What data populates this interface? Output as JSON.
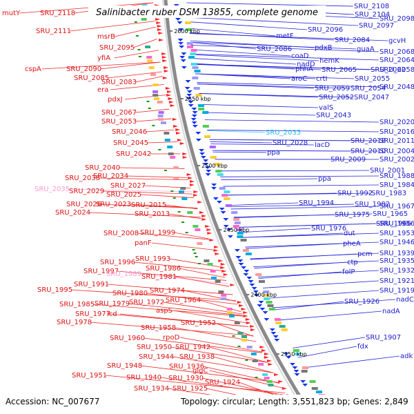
{
  "title": "Salinibacter ruber DSM 13855, complete genome",
  "footer": {
    "accession": "Accession: NC_007677",
    "summary": "Topology: circular; Length: 3,551,823 bp; Genes: 2,849"
  },
  "colors": {
    "left_labels": "#dd1111",
    "left_faded": "#ff9ad0",
    "right_labels": "#1a1acc",
    "right_cyan": "#22bbee",
    "backbone": "#888888",
    "forward_arrow": "#ff2222",
    "reverse_arrow": "#1133ee"
  },
  "kbp_marks": [
    "2600 kbp",
    "2550 kbp",
    "2500 kbp",
    "2450 kbp",
    "2400 kbp",
    "2350 kbp"
  ],
  "left_labels": [
    {
      "text": "mutY",
      "style": "normal"
    },
    {
      "text": "SRU_2118",
      "style": "normal"
    },
    {
      "text": "SRU_2111",
      "style": "normal"
    },
    {
      "text": "msrB",
      "style": "normal"
    },
    {
      "text": "SRU_2095",
      "style": "normal"
    },
    {
      "text": "yfiA",
      "style": "normal"
    },
    {
      "text": "cspA",
      "style": "normal"
    },
    {
      "text": "SRU_2090",
      "style": "normal"
    },
    {
      "text": "SRU_2085",
      "style": "normal"
    },
    {
      "text": "SRU_2083",
      "style": "normal"
    },
    {
      "text": "era",
      "style": "normal"
    },
    {
      "text": "pdxJ",
      "style": "normal"
    },
    {
      "text": "SRU_2067",
      "style": "normal"
    },
    {
      "text": "SRU_2053",
      "style": "normal"
    },
    {
      "text": "SRU_2046",
      "style": "normal"
    },
    {
      "text": "SRU_2045",
      "style": "normal"
    },
    {
      "text": "SRU_2042",
      "style": "normal"
    },
    {
      "text": "SRU_2040",
      "style": "normal"
    },
    {
      "text": "SRU_2038",
      "style": "normal"
    },
    {
      "text": "SRU_2034",
      "style": "normal"
    },
    {
      "text": "SRU_2035",
      "style": "faded"
    },
    {
      "text": "SRU_2029",
      "style": "normal"
    },
    {
      "text": "SRU_2027",
      "style": "normal"
    },
    {
      "text": "SRU_2025",
      "style": "normal"
    },
    {
      "text": "SRU_2026",
      "style": "normal"
    },
    {
      "text": "SRU_2023",
      "style": "normal"
    },
    {
      "text": "SRU_2024",
      "style": "normal"
    },
    {
      "text": "SRU_2015",
      "style": "normal"
    },
    {
      "text": "SRU_2013",
      "style": "normal"
    },
    {
      "text": "SRU_2008",
      "style": "normal"
    },
    {
      "text": "SRU_1999",
      "style": "normal"
    },
    {
      "text": "panF",
      "style": "normal"
    },
    {
      "text": "SRU_1993",
      "style": "normal"
    },
    {
      "text": "SRU_1996",
      "style": "normal"
    },
    {
      "text": "SRU_1986",
      "style": "normal"
    },
    {
      "text": "SRU_1997",
      "style": "normal"
    },
    {
      "text": "SRU_1989",
      "style": "faded"
    },
    {
      "text": "SRU_1981",
      "style": "normal"
    },
    {
      "text": "SRU_1991",
      "style": "normal"
    },
    {
      "text": "SRU_1995",
      "style": "normal"
    },
    {
      "text": "SRU_1980",
      "style": "normal"
    },
    {
      "text": "SRU_1974",
      "style": "normal"
    },
    {
      "text": "SRU_1964",
      "style": "normal"
    },
    {
      "text": "SRU_1985",
      "style": "normal"
    },
    {
      "text": "SRU_1979",
      "style": "normal"
    },
    {
      "text": "SRU_1972",
      "style": "normal"
    },
    {
      "text": "SRU_1977",
      "style": "normal"
    },
    {
      "text": "icd",
      "style": "normal"
    },
    {
      "text": "aspS",
      "style": "normal"
    },
    {
      "text": "SRU_1978",
      "style": "normal"
    },
    {
      "text": "SRU_1952",
      "style": "normal"
    },
    {
      "text": "SRU_1958",
      "style": "normal"
    },
    {
      "text": "SRU_1960",
      "style": "normal"
    },
    {
      "text": "rpoD",
      "style": "normal"
    },
    {
      "text": "SRU_1950",
      "style": "normal"
    },
    {
      "text": "SRU_1942",
      "style": "normal"
    },
    {
      "text": "SRU_1944",
      "style": "normal"
    },
    {
      "text": "SRU_1938",
      "style": "normal"
    },
    {
      "text": "SRU_1948",
      "style": "normal"
    },
    {
      "text": "SRU_1936",
      "style": "normal"
    },
    {
      "text": "SRU_1951",
      "style": "normal"
    },
    {
      "text": "SRU_1940",
      "style": "normal"
    },
    {
      "text": "SRU_1930",
      "style": "normal"
    },
    {
      "text": "glgC",
      "style": "normal"
    },
    {
      "text": "SRU_1934",
      "style": "normal"
    },
    {
      "text": "SRU_1925",
      "style": "normal"
    },
    {
      "text": "SRU_1924",
      "style": "normal"
    },
    {
      "text": "SRU_1927",
      "style": "normal"
    }
  ],
  "right_labels": [
    {
      "text": "SRU_2108",
      "style": "normal"
    },
    {
      "text": "SRU_2104",
      "style": "normal"
    },
    {
      "text": "SRU_2098",
      "style": "normal"
    },
    {
      "text": "SRU_2097",
      "style": "normal"
    },
    {
      "text": "SRU_2096",
      "style": "normal"
    },
    {
      "text": "metF",
      "style": "normal"
    },
    {
      "text": "SRU_2084",
      "style": "normal"
    },
    {
      "text": "gcvH",
      "style": "normal"
    },
    {
      "text": "pdxB",
      "style": "normal"
    },
    {
      "text": "guaA",
      "style": "normal"
    },
    {
      "text": "SRU_2068",
      "style": "normal"
    },
    {
      "text": "SRU_2086",
      "style": "normal"
    },
    {
      "text": "coaD",
      "style": "normal"
    },
    {
      "text": "nadD",
      "style": "normal"
    },
    {
      "text": "hemK",
      "style": "normal"
    },
    {
      "text": "SRU_2064",
      "style": "normal"
    },
    {
      "text": "phhA",
      "style": "normal"
    },
    {
      "text": "SRU_2065",
      "style": "normal"
    },
    {
      "text": "SRU_2062",
      "style": "normal"
    },
    {
      "text": "SRU_2058",
      "style": "normal"
    },
    {
      "text": "aroC",
      "style": "normal"
    },
    {
      "text": "crtI",
      "style": "normal"
    },
    {
      "text": "SRU_2055",
      "style": "normal"
    },
    {
      "text": "SRU_2059",
      "style": "normal"
    },
    {
      "text": "SRU_2054",
      "style": "normal"
    },
    {
      "text": "SRU_2048",
      "style": "normal"
    },
    {
      "text": "SRU_2052",
      "style": "normal"
    },
    {
      "text": "SRU_2047",
      "style": "normal"
    },
    {
      "text": "valS",
      "style": "normal"
    },
    {
      "text": "SRU_2043",
      "style": "normal"
    },
    {
      "text": "SRU_2020",
      "style": "normal"
    },
    {
      "text": "SRU_2016",
      "style": "normal"
    },
    {
      "text": "SRU_2033",
      "style": "cyan"
    },
    {
      "text": "lacD",
      "style": "normal"
    },
    {
      "text": "SRU_2018",
      "style": "normal"
    },
    {
      "text": "SRU_2011",
      "style": "normal"
    },
    {
      "text": "SRU_2028",
      "style": "normal"
    },
    {
      "text": "SRU_2010",
      "style": "normal"
    },
    {
      "text": "SRU_2004",
      "style": "normal"
    },
    {
      "text": "ppa",
      "style": "normal"
    },
    {
      "text": "SRU_2009",
      "style": "normal"
    },
    {
      "text": "SRU_2002",
      "style": "normal"
    },
    {
      "text": "SRU_2001",
      "style": "normal"
    },
    {
      "text": "SRU_1988",
      "style": "normal"
    },
    {
      "text": "ppa",
      "style": "normal"
    },
    {
      "text": "SRU_1984",
      "style": "normal"
    },
    {
      "text": "SRU_1992",
      "style": "normal"
    },
    {
      "text": "SRU_1983",
      "style": "normal"
    },
    {
      "text": "SRU_1994",
      "style": "normal"
    },
    {
      "text": "SRU_1982",
      "style": "normal"
    },
    {
      "text": "SRU_1967",
      "style": "normal"
    },
    {
      "text": "SRU_1975",
      "style": "normal"
    },
    {
      "text": "SRU_1965",
      "style": "normal"
    },
    {
      "text": "SRU_1966",
      "style": "normal"
    },
    {
      "text": "SRU_1956",
      "style": "normal"
    },
    {
      "text": "SRU_1976",
      "style": "normal"
    },
    {
      "text": "dut",
      "style": "normal"
    },
    {
      "text": "SRU_1953",
      "style": "normal"
    },
    {
      "text": "pheA",
      "style": "normal"
    },
    {
      "text": "SRU_1946",
      "style": "normal"
    },
    {
      "text": "pcm",
      "style": "normal"
    },
    {
      "text": "SRU_1939",
      "style": "normal"
    },
    {
      "text": "ctp",
      "style": "normal"
    },
    {
      "text": "SRU_1935",
      "style": "normal"
    },
    {
      "text": "folP",
      "style": "normal"
    },
    {
      "text": "SRU_1932",
      "style": "normal"
    },
    {
      "text": "SRU_1921",
      "style": "normal"
    },
    {
      "text": "SRU_1919",
      "style": "normal"
    },
    {
      "text": "SRU_1926",
      "style": "normal"
    },
    {
      "text": "nadC",
      "style": "normal"
    },
    {
      "text": "nadA",
      "style": "normal"
    },
    {
      "text": "SRU_1907",
      "style": "normal"
    },
    {
      "text": "fdx",
      "style": "normal"
    },
    {
      "text": "adk",
      "style": "normal"
    }
  ]
}
